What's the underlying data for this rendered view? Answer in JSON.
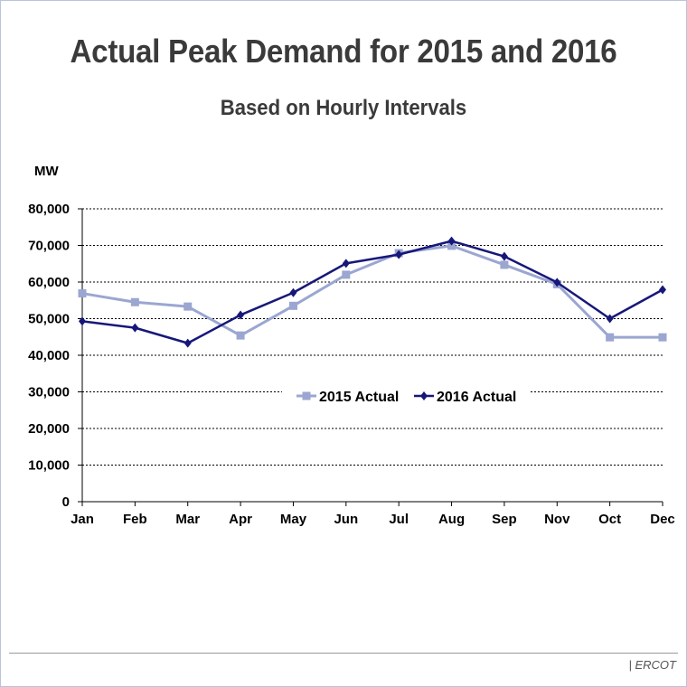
{
  "chart_data": {
    "type": "line",
    "title": "Actual Peak Demand for 2015 and 2016",
    "subtitle": "Based on Hourly Intervals",
    "ylabel": "MW",
    "xlabel": "",
    "categories": [
      "Jan",
      "Feb",
      "Mar",
      "Apr",
      "May",
      "Jun",
      "Jul",
      "Aug",
      "Sep",
      "Nov",
      "Oct",
      "Dec"
    ],
    "ylim": [
      0,
      80000
    ],
    "yticks": [
      0,
      10000,
      20000,
      30000,
      40000,
      50000,
      60000,
      70000,
      80000
    ],
    "ytick_labels": [
      "0",
      "10,000",
      "20,000",
      "30,000",
      "40,000",
      "50,000",
      "60,000",
      "70,000",
      "80,000"
    ],
    "grid": "horizontal dashed",
    "legend_placement": "center",
    "series": [
      {
        "name": "2015 Actual",
        "color": "#9ba6d1",
        "marker": "square",
        "values": [
          56900,
          54500,
          53300,
          45400,
          53500,
          62000,
          67900,
          69900,
          64700,
          59400,
          44900,
          44900
        ]
      },
      {
        "name": "2016 Actual",
        "color": "#17177a",
        "marker": "diamond",
        "values": [
          49300,
          47500,
          43300,
          51000,
          57100,
          65100,
          67500,
          71200,
          67000,
          59900,
          50000,
          57900
        ]
      }
    ]
  },
  "footer": {
    "source": "| ERCOT"
  }
}
